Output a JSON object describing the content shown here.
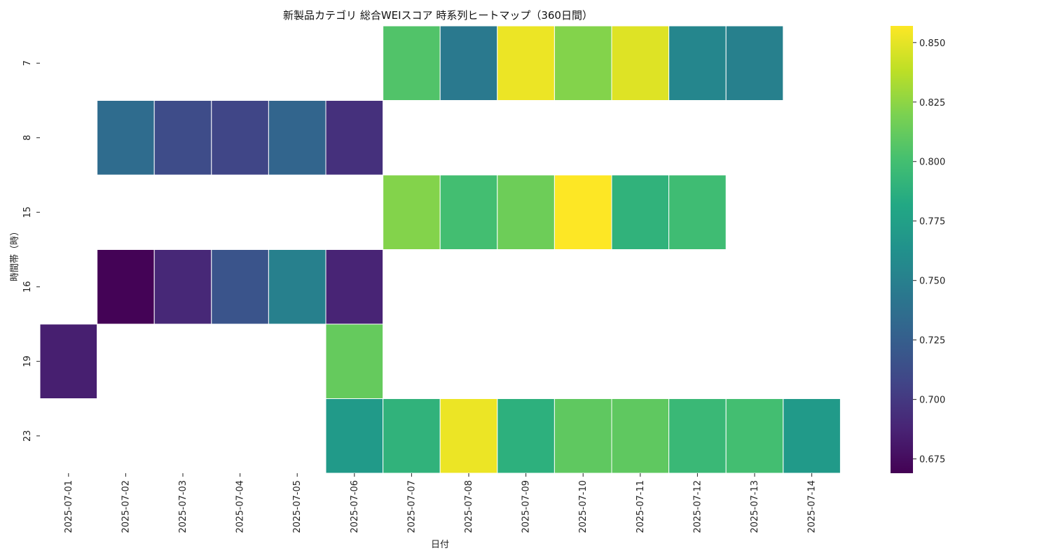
{
  "chart_data": {
    "type": "heatmap",
    "title": "新製品カテゴリ 総合WEIスコア 時系列ヒートマップ（360日間）",
    "xlabel": "日付",
    "ylabel": "時間帯（時）",
    "x_categories": [
      "2025-07-01",
      "2025-07-02",
      "2025-07-03",
      "2025-07-04",
      "2025-07-05",
      "2025-07-06",
      "2025-07-07",
      "2025-07-08",
      "2025-07-09",
      "2025-07-10",
      "2025-07-11",
      "2025-07-12",
      "2025-07-13",
      "2025-07-14"
    ],
    "y_categories": [
      "7",
      "8",
      "15",
      "16",
      "19",
      "23"
    ],
    "values": [
      [
        null,
        null,
        null,
        null,
        null,
        null,
        0.805,
        0.745,
        0.852,
        0.822,
        0.848,
        0.755,
        0.75,
        null
      ],
      [
        null,
        0.735,
        0.712,
        0.708,
        0.73,
        0.695,
        null,
        null,
        null,
        null,
        null,
        null,
        null,
        null
      ],
      [
        null,
        null,
        null,
        null,
        null,
        null,
        0.822,
        0.8,
        0.815,
        0.857,
        0.79,
        0.798,
        null,
        null
      ],
      [
        null,
        0.67,
        0.69,
        0.718,
        0.75,
        0.688,
        null,
        null,
        null,
        null,
        null,
        null,
        null,
        null
      ],
      [
        0.685,
        null,
        null,
        null,
        null,
        0.812,
        null,
        null,
        null,
        null,
        null,
        null,
        null,
        null
      ],
      [
        null,
        null,
        null,
        null,
        null,
        0.77,
        0.79,
        0.852,
        0.788,
        0.81,
        0.81,
        0.795,
        0.8,
        0.77
      ]
    ],
    "colorbar": {
      "colormap": "viridis",
      "range": [
        0.669,
        0.857
      ],
      "ticks": [
        0.675,
        0.7,
        0.725,
        0.75,
        0.775,
        0.8,
        0.825,
        0.85
      ],
      "tick_labels": [
        "0.675",
        "0.700",
        "0.725",
        "0.750",
        "0.775",
        "0.800",
        "0.825",
        "0.850"
      ]
    },
    "grid": false,
    "legend": "colorbar-right"
  }
}
